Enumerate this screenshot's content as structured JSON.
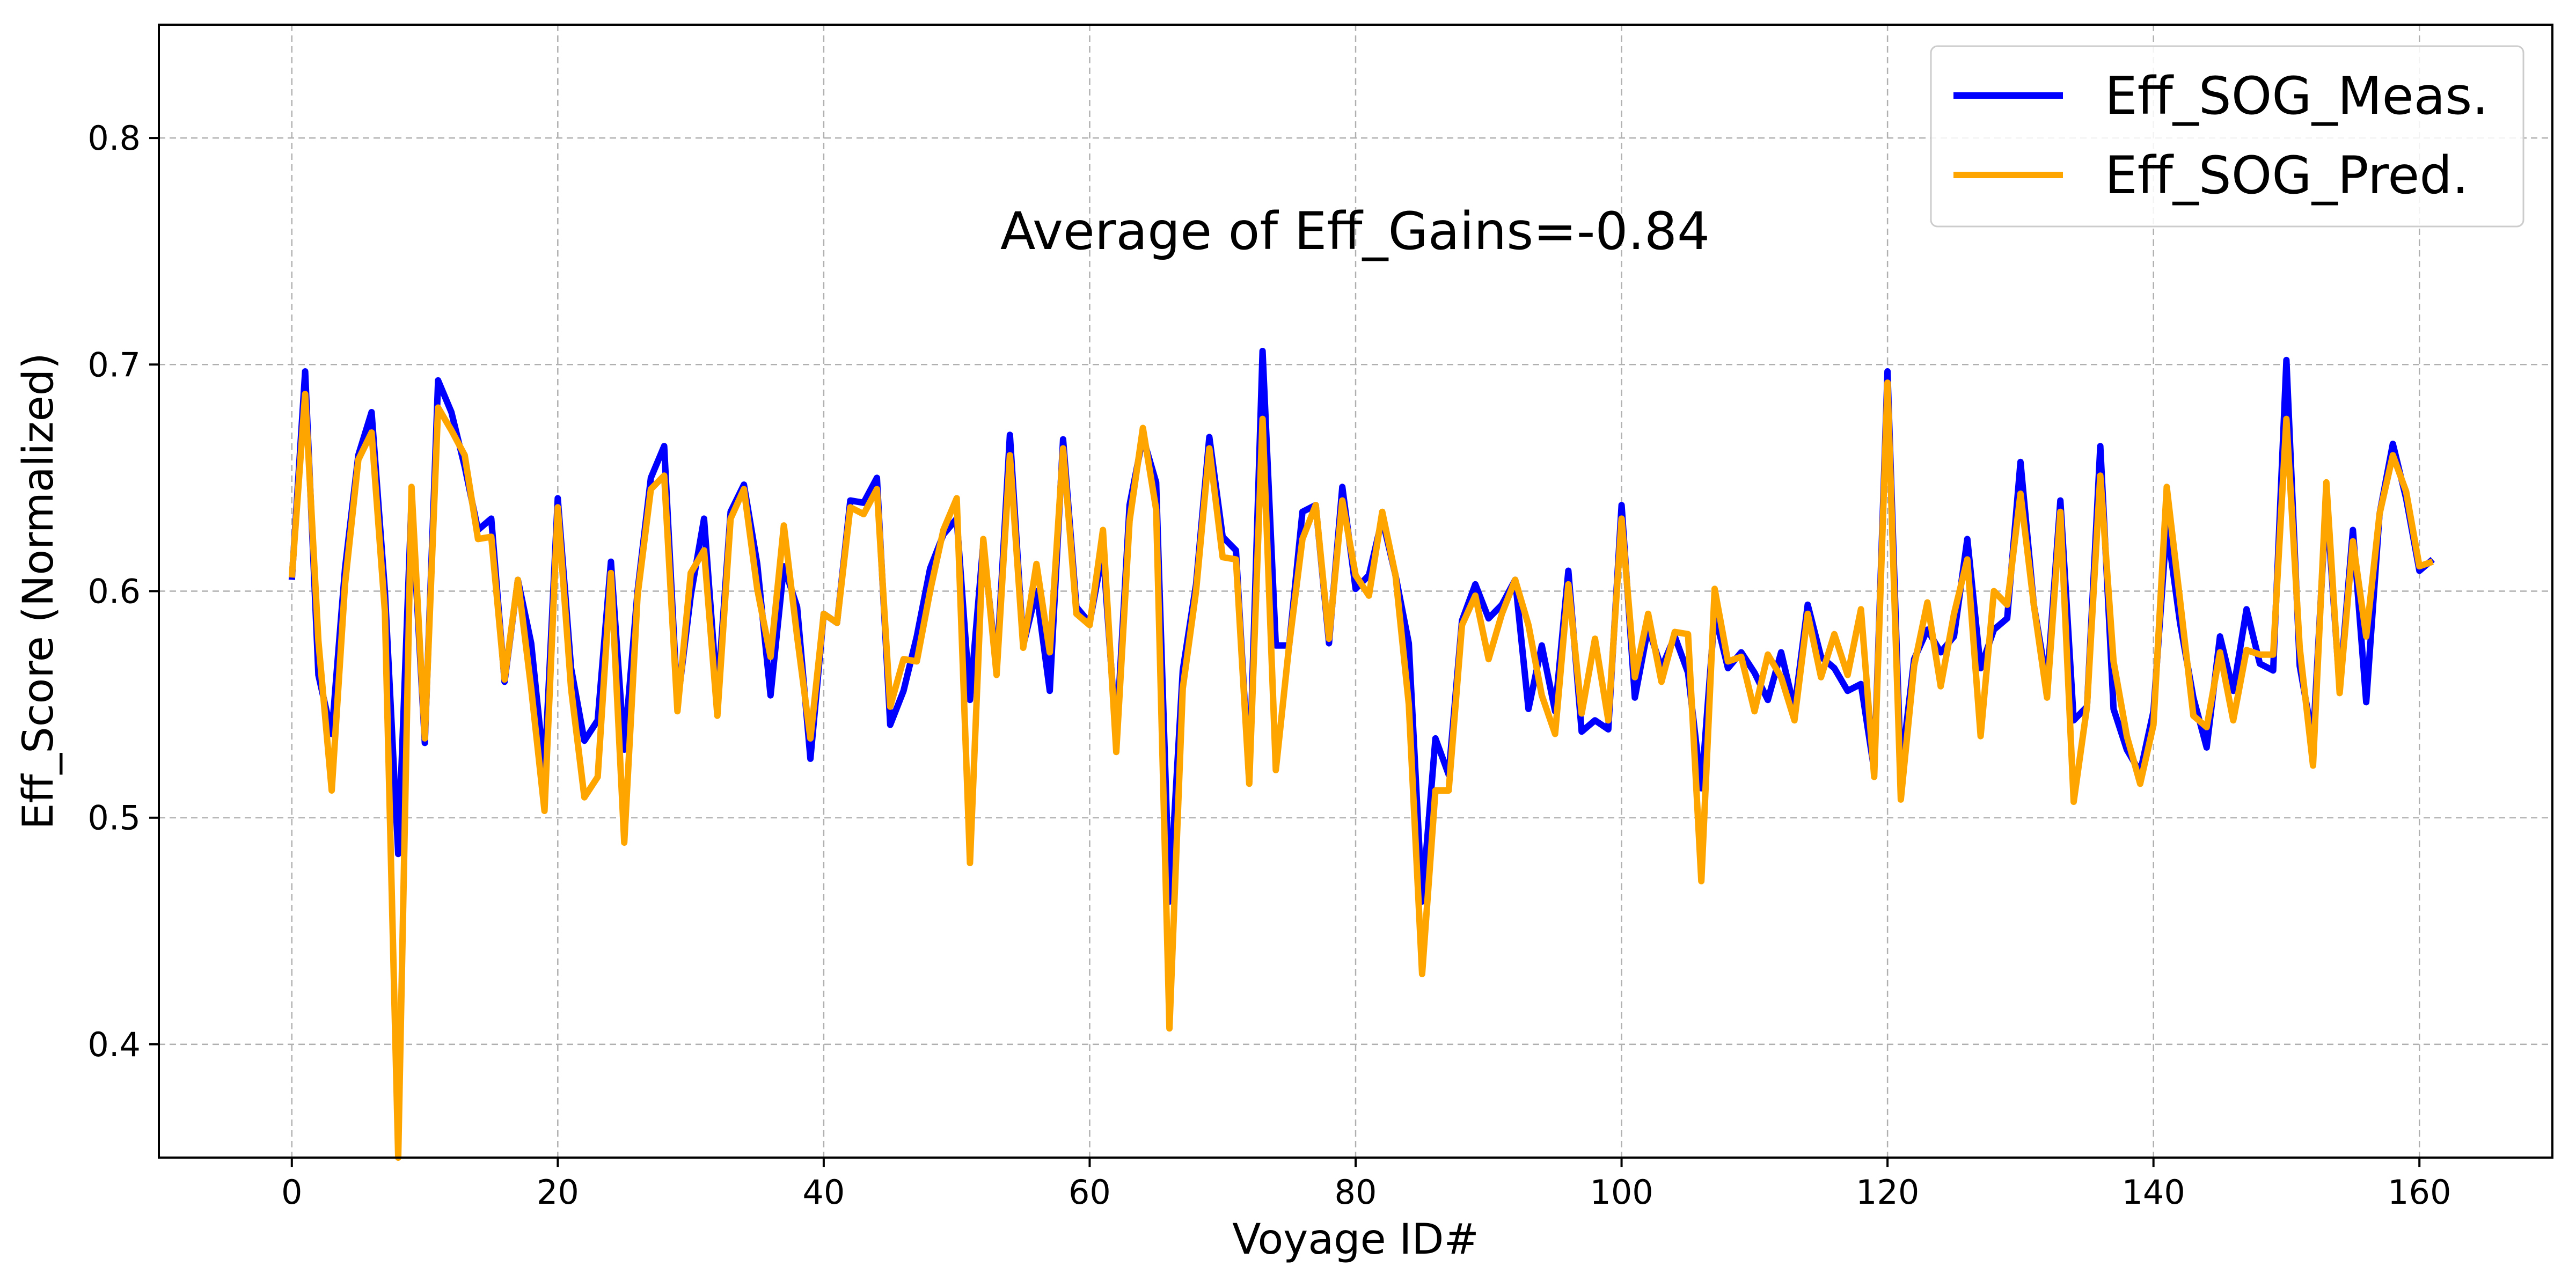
{
  "chart_data": {
    "type": "line",
    "title": "",
    "xlabel": "Voyage ID#",
    "ylabel": "Eff_Score (Normalized)",
    "annotation": "Average of Eff_Gains=-0.84",
    "xlim": [
      -10,
      170
    ],
    "ylim": [
      0.35,
      0.85
    ],
    "xticks": [
      0,
      20,
      40,
      60,
      80,
      100,
      120,
      140,
      160
    ],
    "yticks": [
      0.4,
      0.5,
      0.6,
      0.7,
      0.8
    ],
    "xtick_labels": [
      "0",
      "20",
      "40",
      "60",
      "80",
      "100",
      "120",
      "140",
      "160"
    ],
    "ytick_labels": [
      "0.4",
      "0.5",
      "0.6",
      "0.7",
      "0.8"
    ],
    "grid": true,
    "legend_position": "top-right",
    "x": [
      0,
      1,
      2,
      3,
      4,
      5,
      6,
      7,
      8,
      9,
      10,
      11,
      12,
      13,
      14,
      15,
      16,
      17,
      18,
      19,
      20,
      21,
      22,
      23,
      24,
      25,
      26,
      27,
      28,
      29,
      30,
      31,
      32,
      33,
      34,
      35,
      36,
      37,
      38,
      39,
      40,
      41,
      42,
      43,
      44,
      45,
      46,
      47,
      48,
      49,
      50,
      51,
      52,
      53,
      54,
      55,
      56,
      57,
      58,
      59,
      60,
      61,
      62,
      63,
      64,
      65,
      66,
      67,
      68,
      69,
      70,
      71,
      72,
      73,
      74,
      75,
      76,
      77,
      78,
      79,
      80,
      81,
      82,
      83,
      84,
      85,
      86,
      87,
      88,
      89,
      90,
      91,
      92,
      93,
      94,
      95,
      96,
      97,
      98,
      99,
      100,
      101,
      102,
      103,
      104,
      105,
      106,
      107,
      108,
      109,
      110,
      111,
      112,
      113,
      114,
      115,
      116,
      117,
      118,
      119,
      120,
      121,
      122,
      123,
      124,
      125,
      126,
      127,
      128,
      129,
      130,
      131,
      132,
      133,
      134,
      135,
      136,
      137,
      138,
      139,
      140,
      141,
      142,
      143,
      144,
      145,
      146,
      147,
      148,
      149,
      150,
      151,
      152,
      153,
      154,
      155,
      156,
      157,
      158,
      159,
      160,
      161
    ],
    "series": [
      {
        "name": "Eff_SOG_Meas.",
        "color": "#0000ff",
        "values": [
          0.605,
          0.697,
          0.563,
          0.537,
          0.61,
          0.66,
          0.679,
          0.6,
          0.484,
          0.64,
          0.533,
          0.693,
          0.679,
          0.655,
          0.627,
          0.632,
          0.56,
          0.605,
          0.577,
          0.52,
          0.641,
          0.566,
          0.534,
          0.543,
          0.613,
          0.53,
          0.6,
          0.65,
          0.664,
          0.55,
          0.598,
          0.632,
          0.553,
          0.635,
          0.647,
          0.612,
          0.554,
          0.611,
          0.593,
          0.526,
          0.59,
          0.586,
          0.64,
          0.639,
          0.65,
          0.541,
          0.556,
          0.58,
          0.61,
          0.625,
          0.632,
          0.552,
          0.621,
          0.566,
          0.669,
          0.576,
          0.6,
          0.556,
          0.667,
          0.593,
          0.586,
          0.618,
          0.535,
          0.638,
          0.668,
          0.648,
          0.463,
          0.565,
          0.603,
          0.668,
          0.624,
          0.618,
          0.516,
          0.706,
          0.576,
          0.576,
          0.635,
          0.638,
          0.577,
          0.646,
          0.601,
          0.607,
          0.632,
          0.607,
          0.577,
          0.463,
          0.535,
          0.519,
          0.587,
          0.603,
          0.588,
          0.594,
          0.605,
          0.548,
          0.576,
          0.547,
          0.609,
          0.538,
          0.543,
          0.539,
          0.638,
          0.553,
          0.584,
          0.566,
          0.58,
          0.564,
          0.513,
          0.59,
          0.566,
          0.573,
          0.564,
          0.552,
          0.573,
          0.548,
          0.594,
          0.571,
          0.566,
          0.556,
          0.559,
          0.521,
          0.697,
          0.52,
          0.57,
          0.583,
          0.573,
          0.58,
          0.623,
          0.566,
          0.583,
          0.588,
          0.657,
          0.594,
          0.559,
          0.64,
          0.543,
          0.549,
          0.664,
          0.548,
          0.53,
          0.52,
          0.547,
          0.629,
          0.586,
          0.553,
          0.531,
          0.58,
          0.556,
          0.592,
          0.568,
          0.565,
          0.702,
          0.567,
          0.534,
          0.641,
          0.557,
          0.627,
          0.551,
          0.634,
          0.665,
          0.641,
          0.609,
          0.614
        ]
      },
      {
        "name": "Eff_SOG_Pred.",
        "color": "#ffa500",
        "values": [
          0.606,
          0.687,
          0.578,
          0.512,
          0.603,
          0.658,
          0.67,
          0.591,
          0.35,
          0.646,
          0.535,
          0.681,
          0.671,
          0.66,
          0.623,
          0.624,
          0.561,
          0.605,
          0.557,
          0.503,
          0.637,
          0.557,
          0.509,
          0.518,
          0.608,
          0.489,
          0.598,
          0.645,
          0.651,
          0.547,
          0.608,
          0.618,
          0.545,
          0.632,
          0.645,
          0.601,
          0.571,
          0.629,
          0.58,
          0.535,
          0.59,
          0.586,
          0.637,
          0.634,
          0.645,
          0.549,
          0.57,
          0.569,
          0.6,
          0.627,
          0.641,
          0.48,
          0.623,
          0.563,
          0.66,
          0.575,
          0.612,
          0.573,
          0.663,
          0.59,
          0.585,
          0.627,
          0.529,
          0.631,
          0.672,
          0.636,
          0.407,
          0.557,
          0.6,
          0.663,
          0.615,
          0.614,
          0.515,
          0.676,
          0.521,
          0.576,
          0.623,
          0.638,
          0.579,
          0.64,
          0.607,
          0.598,
          0.635,
          0.607,
          0.55,
          0.431,
          0.512,
          0.512,
          0.585,
          0.598,
          0.57,
          0.59,
          0.605,
          0.585,
          0.554,
          0.537,
          0.603,
          0.546,
          0.579,
          0.543,
          0.632,
          0.562,
          0.59,
          0.56,
          0.582,
          0.581,
          0.472,
          0.601,
          0.569,
          0.571,
          0.547,
          0.572,
          0.562,
          0.543,
          0.59,
          0.562,
          0.581,
          0.563,
          0.592,
          0.518,
          0.692,
          0.508,
          0.567,
          0.595,
          0.558,
          0.59,
          0.614,
          0.536,
          0.6,
          0.594,
          0.643,
          0.594,
          0.553,
          0.635,
          0.507,
          0.549,
          0.651,
          0.569,
          0.536,
          0.515,
          0.541,
          0.646,
          0.596,
          0.545,
          0.54,
          0.573,
          0.543,
          0.574,
          0.572,
          0.572,
          0.676,
          0.575,
          0.523,
          0.648,
          0.555,
          0.622,
          0.58,
          0.634,
          0.66,
          0.644,
          0.611,
          0.613
        ]
      }
    ]
  }
}
